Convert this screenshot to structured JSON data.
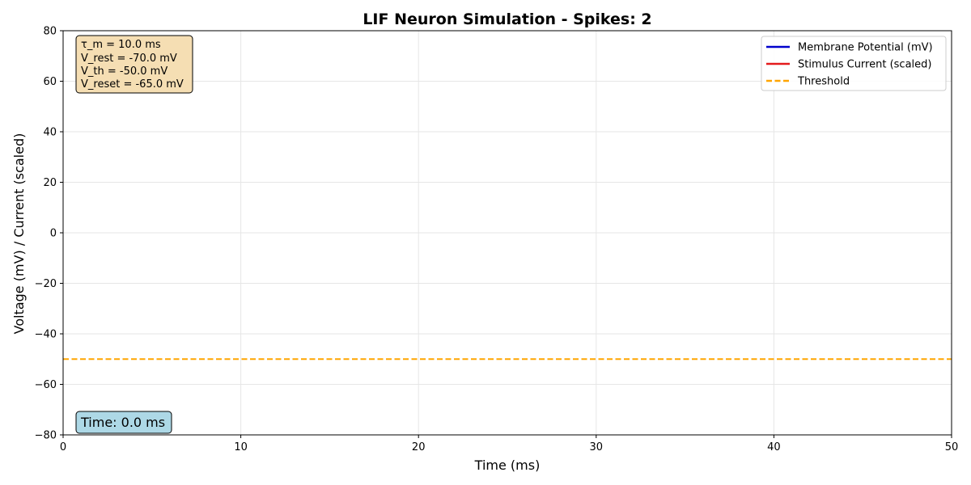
{
  "chart_data": {
    "type": "line",
    "title": "LIF Neuron Simulation - Spikes: 2",
    "xlabel": "Time (ms)",
    "ylabel": "Voltage (mV) / Current (scaled)",
    "xlim": [
      0,
      50
    ],
    "ylim": [
      -80,
      80
    ],
    "xticks": [
      0,
      10,
      20,
      30,
      40,
      50
    ],
    "xtick_labels": [
      "0",
      "10",
      "20",
      "30",
      "40",
      "50"
    ],
    "yticks": [
      -80,
      -60,
      -40,
      -20,
      0,
      20,
      40,
      60,
      80
    ],
    "ytick_labels": [
      "−80",
      "−60",
      "−40",
      "−20",
      "0",
      "20",
      "40",
      "60",
      "80"
    ],
    "grid": true,
    "legend_position": "top-right",
    "series": [
      {
        "name": "Membrane Potential (mV)",
        "color": "#0000cc",
        "style": "solid",
        "x": [],
        "y": []
      },
      {
        "name": "Stimulus Current (scaled)",
        "color": "#e41a1c",
        "style": "solid",
        "x": [],
        "y": []
      },
      {
        "name": "Threshold",
        "color": "#ffa500",
        "style": "dashed",
        "x": [
          0,
          50
        ],
        "y": [
          -50,
          -50
        ]
      }
    ],
    "annotations": {
      "params": [
        "τ_m = 10.0 ms",
        "V_rest = -70.0 mV",
        "V_th = -50.0 mV",
        "V_reset = -65.0 mV"
      ],
      "params_bg": "#f5deb3",
      "time_label": "Time: 0.0 ms",
      "time_bg": "#add8e6"
    }
  }
}
